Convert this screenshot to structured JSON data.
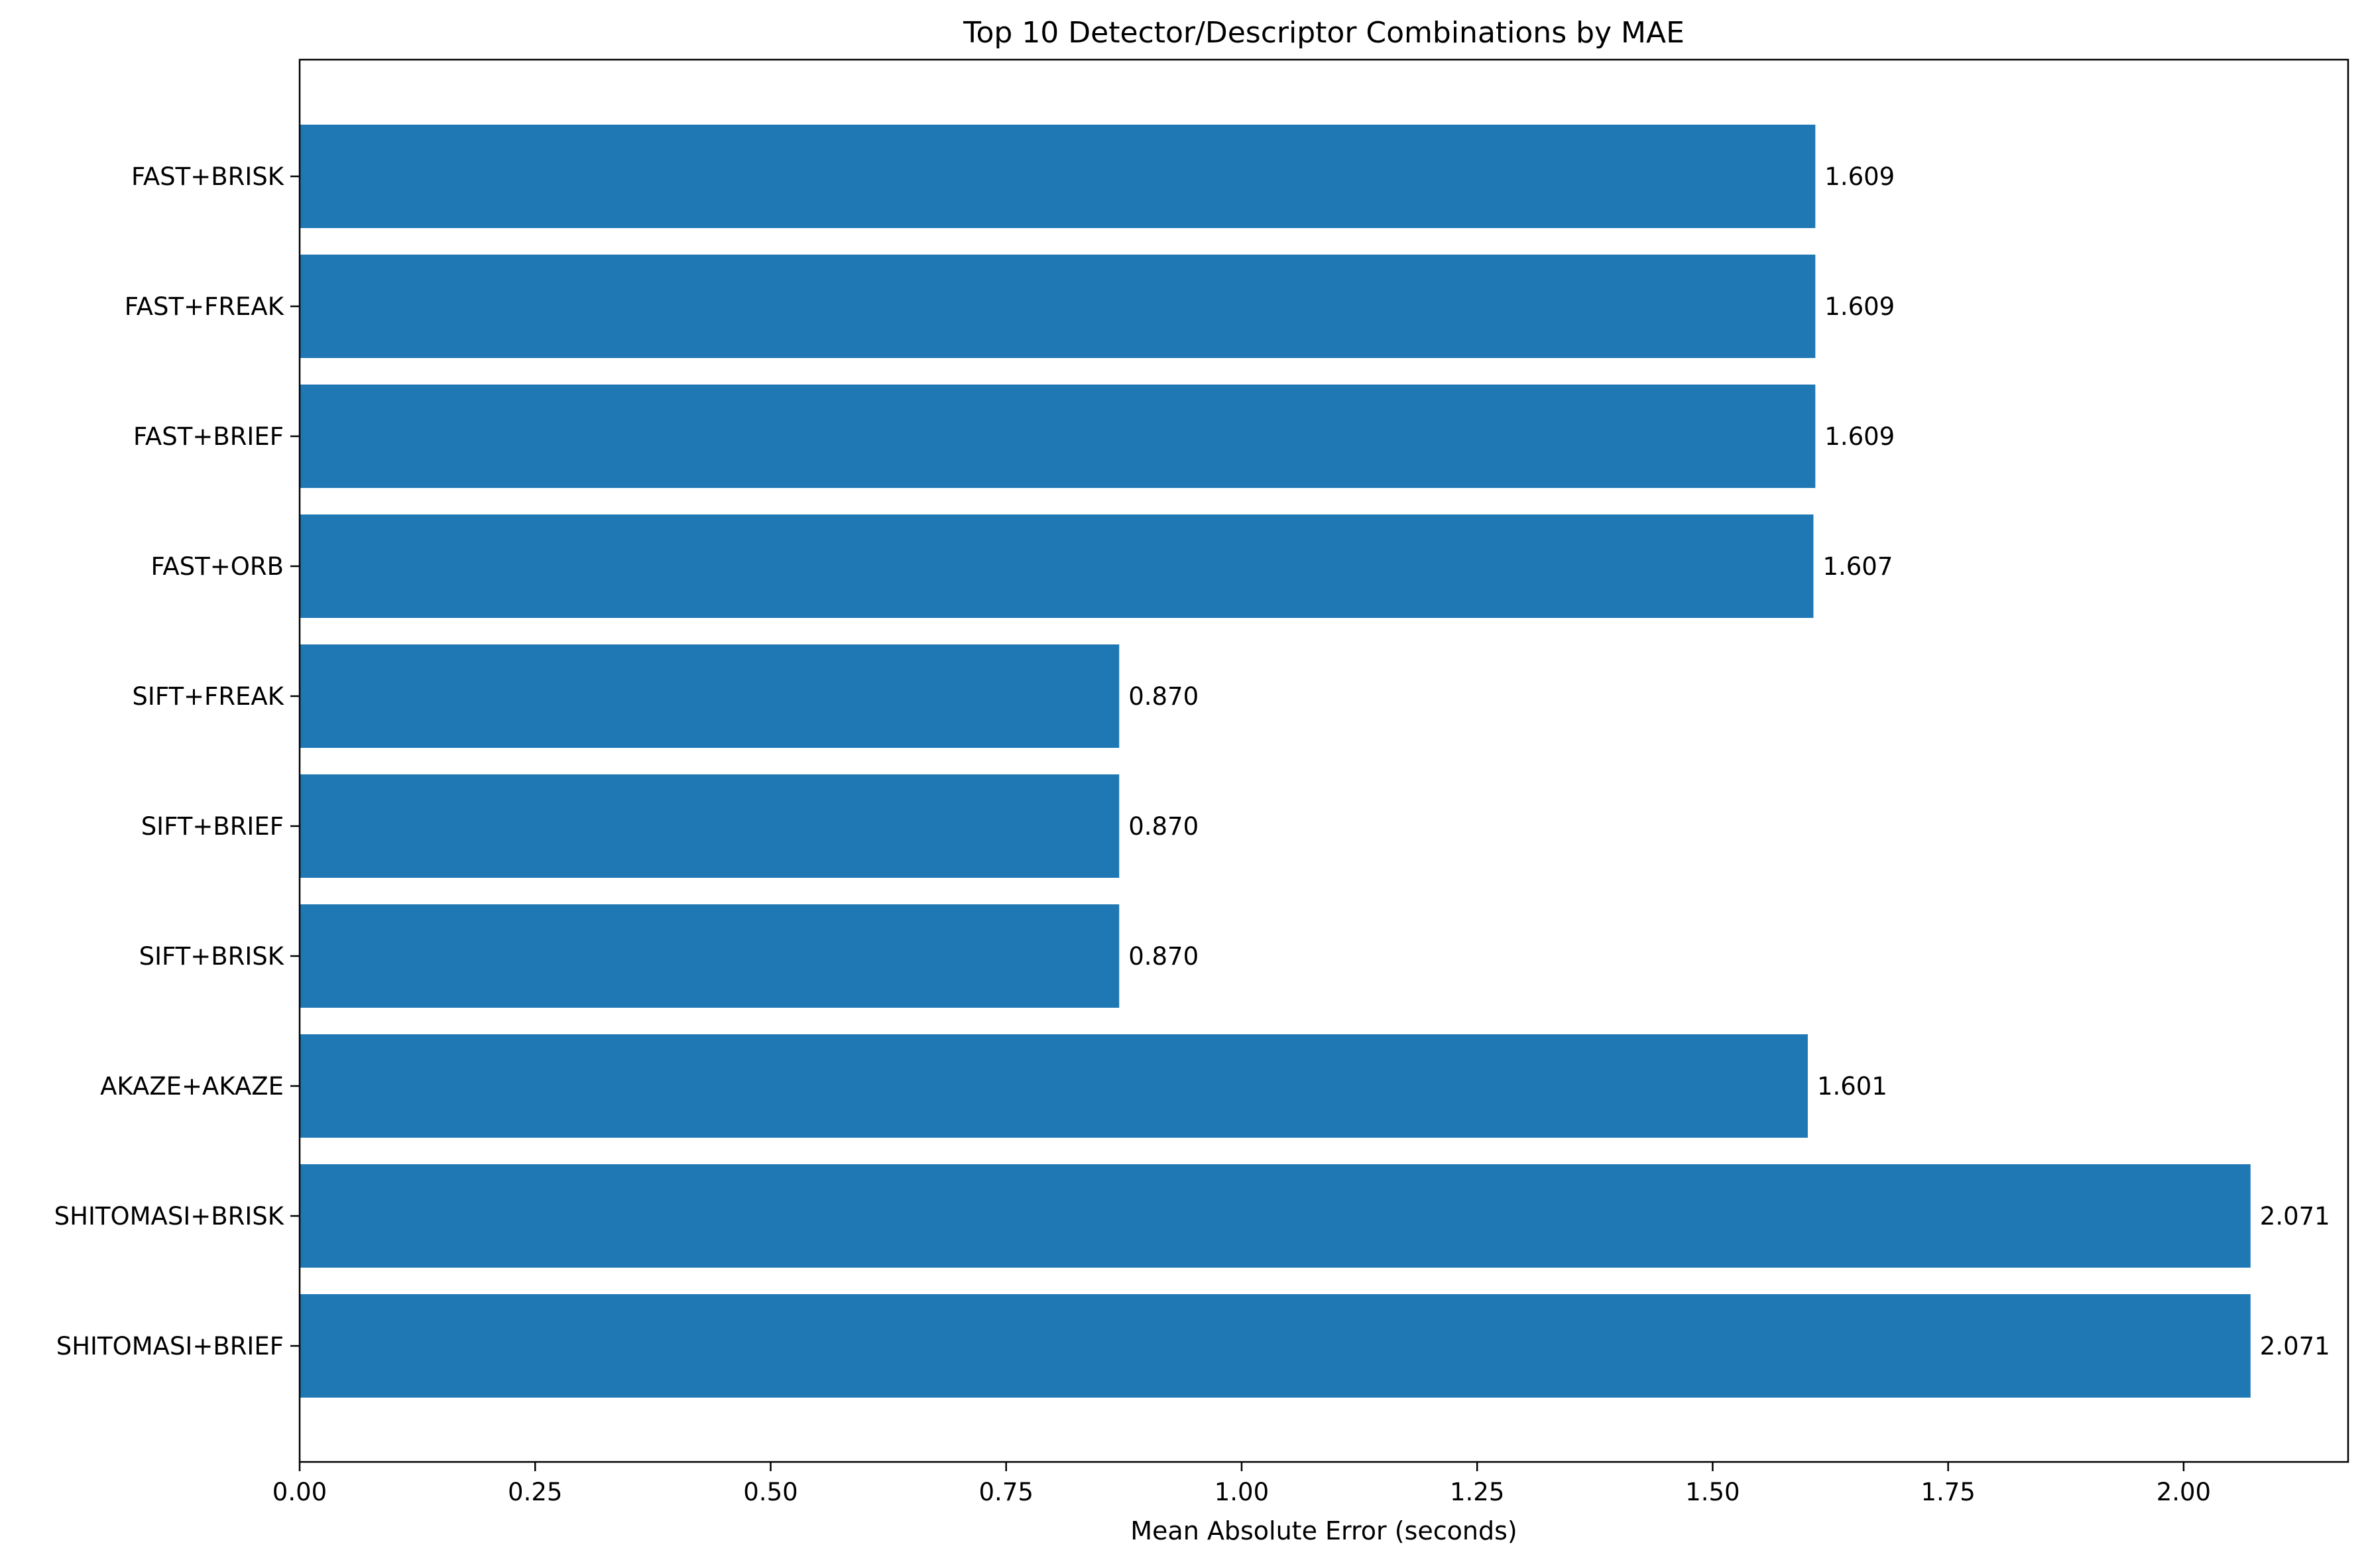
{
  "chart_data": {
    "type": "bar",
    "orientation": "horizontal",
    "title": "Top 10 Detector/Descriptor Combinations by MAE",
    "xlabel": "Mean Absolute Error (seconds)",
    "ylabel": "",
    "categories": [
      "FAST+BRISK",
      "FAST+FREAK",
      "FAST+BRIEF",
      "FAST+ORB",
      "SIFT+FREAK",
      "SIFT+BRIEF",
      "SIFT+BRISK",
      "AKAZE+AKAZE",
      "SHITOMASI+BRISK",
      "SHITOMASI+BRIEF"
    ],
    "values": [
      1.609,
      1.609,
      1.609,
      1.607,
      0.87,
      0.87,
      0.87,
      1.601,
      2.071,
      2.071
    ],
    "value_labels": [
      "1.609",
      "1.609",
      "1.609",
      "1.607",
      "0.870",
      "0.870",
      "0.870",
      "1.601",
      "2.071",
      "2.071"
    ],
    "xlim": [
      0,
      2.1746
    ],
    "xticks": [
      0.0,
      0.25,
      0.5,
      0.75,
      1.0,
      1.25,
      1.5,
      1.75,
      2.0
    ],
    "xtick_labels": [
      "0.00",
      "0.25",
      "0.50",
      "0.75",
      "1.00",
      "1.25",
      "1.50",
      "1.75",
      "2.00"
    ],
    "bar_color": "#1f77b4",
    "grid": false,
    "legend": "none"
  }
}
